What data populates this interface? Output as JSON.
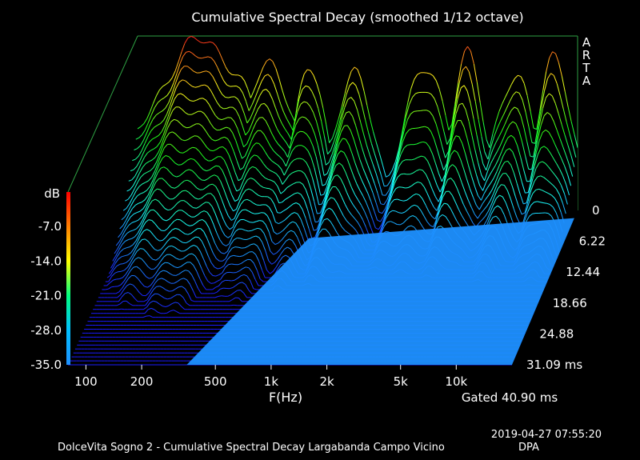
{
  "chart_data": {
    "type": "waterfall",
    "title": "Cumulative Spectral Decay (smoothed 1/12 octave)",
    "xlabel": "F(Hz)",
    "ylabel": "dB",
    "zlabel_unit": "ms",
    "x_scale": "log",
    "x_range_hz": [
      80,
      20000
    ],
    "y_range_db": [
      -35,
      0
    ],
    "y_ticks": [
      "-7.0",
      "-14.0",
      "-21.0",
      "-28.0",
      "-35.0"
    ],
    "x_ticks": [
      {
        "f": 100,
        "label": "100"
      },
      {
        "f": 200,
        "label": "200"
      },
      {
        "f": 500,
        "label": "500"
      },
      {
        "f": 1000,
        "label": "1k"
      },
      {
        "f": 2000,
        "label": "2k"
      },
      {
        "f": 5000,
        "label": "5k"
      },
      {
        "f": 10000,
        "label": "10k"
      }
    ],
    "time_ticks": [
      "0",
      "6.22",
      "12.44",
      "18.66",
      "24.88",
      "31.09 ms"
    ],
    "time_range_ms": [
      0,
      31.09
    ],
    "slice_count": 40,
    "gate_text": "Gated 40.90 ms",
    "brand": "ARTA",
    "grid": false,
    "floor_color": "#1e90ff",
    "colormap": [
      "#ff0000",
      "#ff7f00",
      "#ffff00",
      "#00ff7f",
      "#00bfff",
      "#1e90ff"
    ],
    "spectrum_peaks": [
      {
        "f": 180,
        "db": -1,
        "width_oct": 1.3
      },
      {
        "f": 420,
        "db": -5,
        "width_oct": 0.6
      },
      {
        "f": 700,
        "db": -7,
        "width_oct": 0.4
      },
      {
        "f": 1200,
        "db": -8,
        "width_oct": 0.5
      },
      {
        "f": 3000,
        "db": -7,
        "width_oct": 0.6
      },
      {
        "f": 5000,
        "db": -4,
        "width_oct": 0.4
      },
      {
        "f": 9000,
        "db": -8,
        "width_oct": 0.5
      },
      {
        "f": 15000,
        "db": -3,
        "width_oct": 0.4
      }
    ]
  },
  "footer": {
    "timestamp": "2019-04-27   07:55:20",
    "caption": "DolceVita Sogno 2 - Cumulative Spectral Decay Largabanda Campo Vicino",
    "author": "DPA"
  }
}
